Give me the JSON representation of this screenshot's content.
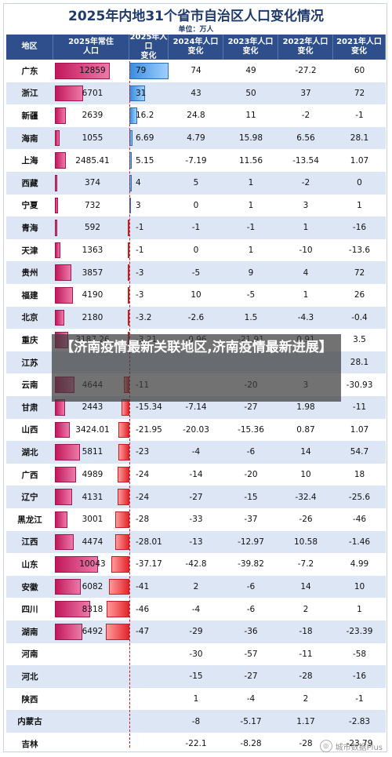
{
  "chart_data": {
    "type": "table",
    "title": "2025年内地31个省市自治区人口变化情况",
    "unit": "单位：万人",
    "columns": [
      "地区",
      "2025年常住\n人口",
      "2025年人口\n变化",
      "2024年人口\n变化",
      "2023年人口\n变化",
      "2022年人口\n变化",
      "2021年人口\n变化"
    ],
    "rows": [
      {
        "region": "广东",
        "pop2025": "12859",
        "c2025": "79",
        "c2024": "74",
        "c2023": "49",
        "c2022": "-27.2",
        "c2021": "60"
      },
      {
        "region": "浙江",
        "pop2025": "6701",
        "c2025": "31",
        "c2024": "43",
        "c2023": "50",
        "c2022": "37",
        "c2021": "72"
      },
      {
        "region": "新疆",
        "pop2025": "2639",
        "c2025": "16.2",
        "c2024": "24.8",
        "c2023": "11",
        "c2022": "-2",
        "c2021": "-1"
      },
      {
        "region": "海南",
        "pop2025": "1055",
        "c2025": "6.69",
        "c2024": "4.79",
        "c2023": "15.98",
        "c2022": "6.56",
        "c2021": "28.1"
      },
      {
        "region": "上海",
        "pop2025": "2485.41",
        "c2025": "5.15",
        "c2024": "-7.19",
        "c2023": "11.56",
        "c2022": "-13.54",
        "c2021": "1.07"
      },
      {
        "region": "西藏",
        "pop2025": "374",
        "c2025": "4",
        "c2024": "5",
        "c2023": "1",
        "c2022": "-2",
        "c2021": "0"
      },
      {
        "region": "宁夏",
        "pop2025": "732",
        "c2025": "3",
        "c2024": "0",
        "c2023": "1",
        "c2022": "3",
        "c2021": "1"
      },
      {
        "region": "青海",
        "pop2025": "592",
        "c2025": "-1",
        "c2024": "-1",
        "c2023": "-1",
        "c2022": "1",
        "c2021": "-16"
      },
      {
        "region": "天津",
        "pop2025": "1363",
        "c2025": "-1",
        "c2024": "0",
        "c2023": "1",
        "c2022": "-10",
        "c2021": "-13.6"
      },
      {
        "region": "贵州",
        "pop2025": "3857",
        "c2025": "-3",
        "c2024": "-5",
        "c2023": "9",
        "c2022": "4",
        "c2021": "72"
      },
      {
        "region": "福建",
        "pop2025": "4190",
        "c2025": "-3",
        "c2024": "10",
        "c2023": "-5",
        "c2022": "1",
        "c2021": "26"
      },
      {
        "region": "北京",
        "pop2025": "2180",
        "c2025": "-3.2",
        "c2024": "-2.6",
        "c2023": "1.5",
        "c2022": "-4.3",
        "c2021": "-0.4"
      },
      {
        "region": "重庆",
        "pop2025": "3187.26",
        "c2025": "-3.21",
        "c2024": "-0.96",
        "c2023": "-21.91",
        "c2022": "0.91",
        "c2021": "3.5"
      },
      {
        "region": "江苏",
        "pop2025": "",
        "c2025": "",
        "c2024": "",
        "c2023": "",
        "c2022": "",
        "c2021": "28.1"
      },
      {
        "region": "云南",
        "pop2025": "4644",
        "c2025": "-11",
        "c2024": "",
        "c2023": "-20",
        "c2022": "3",
        "c2021": "-30.93"
      },
      {
        "region": "甘肃",
        "pop2025": "2443",
        "c2025": "-15.34",
        "c2024": "-7.14",
        "c2023": "-27",
        "c2022": "1.98",
        "c2021": "-11"
      },
      {
        "region": "山西",
        "pop2025": "3424.01",
        "c2025": "-21.95",
        "c2024": "-20.03",
        "c2023": "-15.36",
        "c2022": "0.87",
        "c2021": "1.07"
      },
      {
        "region": "湖北",
        "pop2025": "5811",
        "c2025": "-23",
        "c2024": "-4",
        "c2023": "-6",
        "c2022": "14",
        "c2021": "54.7"
      },
      {
        "region": "广西",
        "pop2025": "4989",
        "c2025": "-24",
        "c2024": "-14",
        "c2023": "-20",
        "c2022": "10",
        "c2021": "18"
      },
      {
        "region": "辽宁",
        "pop2025": "4131",
        "c2025": "-24",
        "c2024": "-27",
        "c2023": "-15",
        "c2022": "-32.4",
        "c2021": "-25.6"
      },
      {
        "region": "黑龙江",
        "pop2025": "3001",
        "c2025": "-28",
        "c2024": "-33",
        "c2023": "-37",
        "c2022": "-26",
        "c2021": "-46"
      },
      {
        "region": "江西",
        "pop2025": "4474",
        "c2025": "-28.01",
        "c2024": "-13",
        "c2023": "-12.97",
        "c2022": "10.58",
        "c2021": "-1.46"
      },
      {
        "region": "山东",
        "pop2025": "10043",
        "c2025": "-37.17",
        "c2024": "-42.8",
        "c2023": "-39.82",
        "c2022": "-7.2",
        "c2021": "4.99"
      },
      {
        "region": "安徽",
        "pop2025": "6082",
        "c2025": "-41",
        "c2024": "2",
        "c2023": "-6",
        "c2022": "14",
        "c2021": "10"
      },
      {
        "region": "四川",
        "pop2025": "8318",
        "c2025": "-46",
        "c2024": "-4",
        "c2023": "-6",
        "c2022": "2",
        "c2021": "1"
      },
      {
        "region": "湖南",
        "pop2025": "6492",
        "c2025": "-47",
        "c2024": "-29",
        "c2023": "-36",
        "c2022": "-18",
        "c2021": "-23.39"
      },
      {
        "region": "河南",
        "pop2025": "",
        "c2025": "",
        "c2024": "-30",
        "c2023": "-57",
        "c2022": "-11",
        "c2021": "-58"
      },
      {
        "region": "河北",
        "pop2025": "",
        "c2025": "",
        "c2024": "-15",
        "c2023": "-27",
        "c2022": "-28",
        "c2021": "-16"
      },
      {
        "region": "陕西",
        "pop2025": "",
        "c2025": "",
        "c2024": "1",
        "c2023": "-4",
        "c2022": "2",
        "c2021": "-1"
      },
      {
        "region": "内蒙古",
        "pop2025": "",
        "c2025": "",
        "c2024": "-8",
        "c2023": "-5.17",
        "c2022": "1.17",
        "c2021": "-2.83"
      },
      {
        "region": "吉林",
        "pop2025": "",
        "c2025": "",
        "c2024": "-22.1",
        "c2023": "-8.28",
        "c2022": "-28",
        "c2021": "-23.79"
      }
    ],
    "colors": {
      "header": "#2e4e8c",
      "pop_bar": "#c2185b",
      "positive": "#3b8de0",
      "negative": "#e3262d",
      "alt_row": "#dce6f5"
    }
  },
  "overlay": {
    "text": "【济南疫情最新关联地区,济南疫情最新进展】"
  },
  "watermark": {
    "text": "城市数据Plus"
  }
}
